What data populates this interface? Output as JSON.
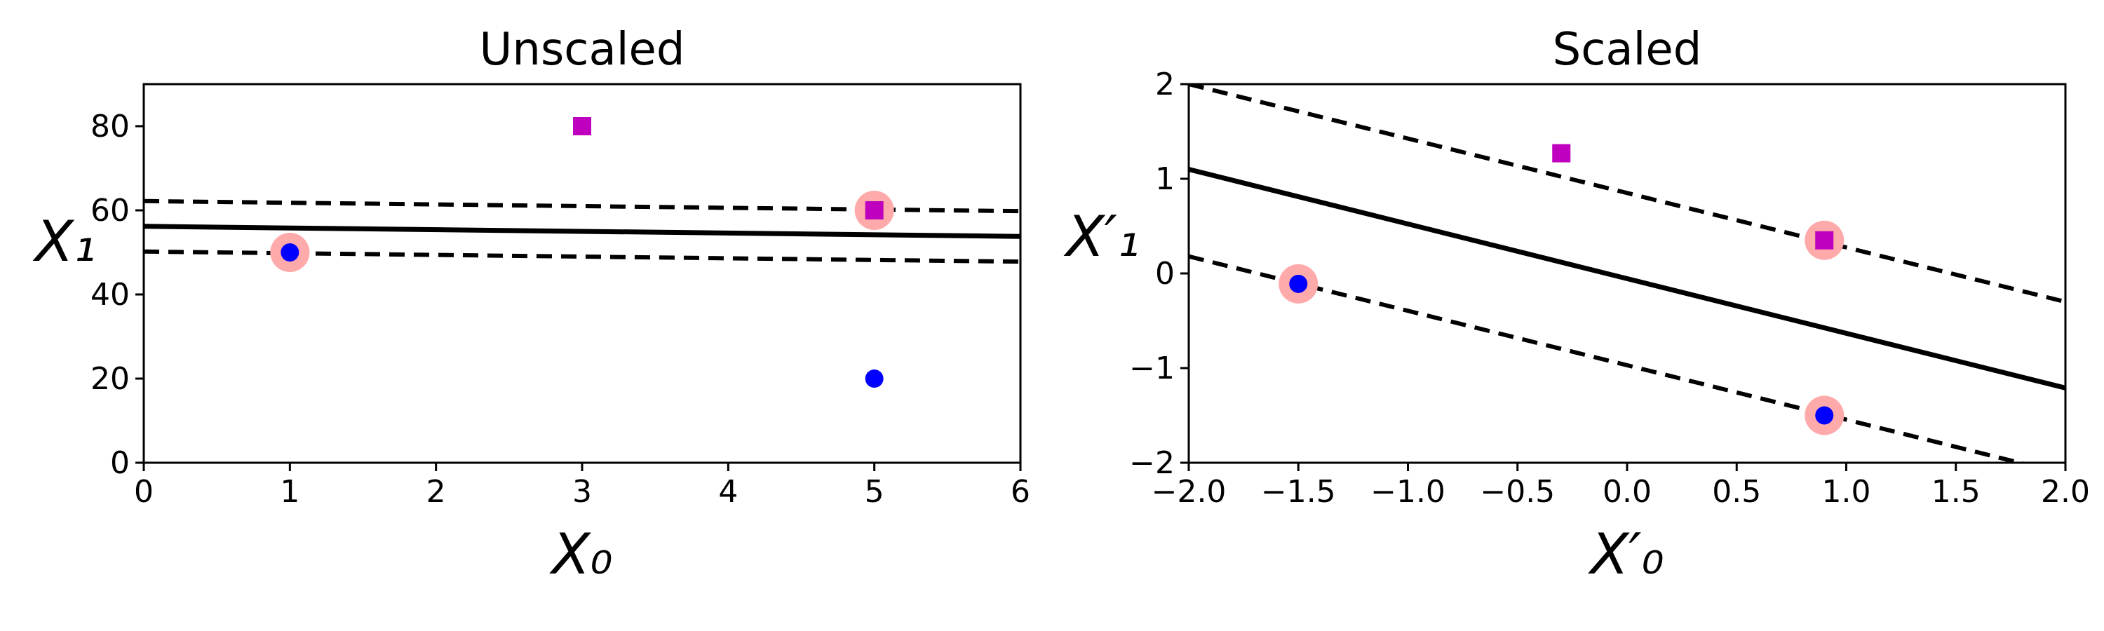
{
  "chart_data": [
    {
      "type": "scatter",
      "title": "Unscaled",
      "xlabel": "X₀",
      "ylabel": "X₁",
      "xlim": [
        0,
        6
      ],
      "ylim": [
        0,
        90
      ],
      "xticks": [
        "0",
        "1",
        "2",
        "3",
        "4",
        "5",
        "6"
      ],
      "yticks": [
        "0",
        "20",
        "40",
        "60",
        "80"
      ],
      "series": [
        {
          "marker": "circle",
          "color": "#0000ff",
          "points": [
            [
              1,
              50
            ],
            [
              5,
              20
            ]
          ]
        },
        {
          "marker": "square",
          "color": "#bf00bf",
          "points": [
            [
              3,
              80
            ],
            [
              5,
              60
            ]
          ]
        }
      ],
      "support_vectors": {
        "color": "#ffaaaa",
        "points": [
          [
            1,
            50
          ],
          [
            5,
            60
          ]
        ]
      },
      "lines": [
        {
          "style": "solid",
          "points": [
            [
              0,
              56.2
            ],
            [
              6,
              53.8
            ]
          ]
        },
        {
          "style": "dashed",
          "points": [
            [
              0,
              62.2
            ],
            [
              6,
              59.8
            ]
          ]
        },
        {
          "style": "dashed",
          "points": [
            [
              0,
              50.2
            ],
            [
              6,
              47.8
            ]
          ]
        }
      ],
      "grid": false
    },
    {
      "type": "scatter",
      "title": "Scaled",
      "xlabel": "X′₀",
      "ylabel": "X′₁",
      "xlim": [
        -2,
        2
      ],
      "ylim": [
        -2,
        2
      ],
      "xticks": [
        "−2.0",
        "−1.5",
        "−1.0",
        "−0.5",
        "0.0",
        "0.5",
        "1.0",
        "1.5",
        "2.0"
      ],
      "yticks": [
        "−2",
        "−1",
        "0",
        "1",
        "2"
      ],
      "series": [
        {
          "marker": "circle",
          "color": "#0000ff",
          "points": [
            [
              -1.5,
              -0.11
            ],
            [
              0.9,
              -1.5
            ]
          ]
        },
        {
          "marker": "square",
          "color": "#bf00bf",
          "points": [
            [
              -0.3,
              1.27
            ],
            [
              0.9,
              0.35
            ]
          ]
        }
      ],
      "support_vectors": {
        "color": "#ffaaaa",
        "points": [
          [
            -1.5,
            -0.11
          ],
          [
            0.9,
            0.35
          ],
          [
            0.9,
            -1.5
          ]
        ]
      },
      "lines": [
        {
          "style": "solid",
          "points": [
            [
              -2,
              1.1
            ],
            [
              2,
              -1.21
            ]
          ]
        },
        {
          "style": "dashed",
          "points": [
            [
              -2,
              2.0
            ],
            [
              2,
              -0.3
            ]
          ]
        },
        {
          "style": "dashed",
          "points": [
            [
              -2,
              0.18
            ],
            [
              2,
              -2.12
            ]
          ]
        }
      ],
      "grid": false
    }
  ]
}
